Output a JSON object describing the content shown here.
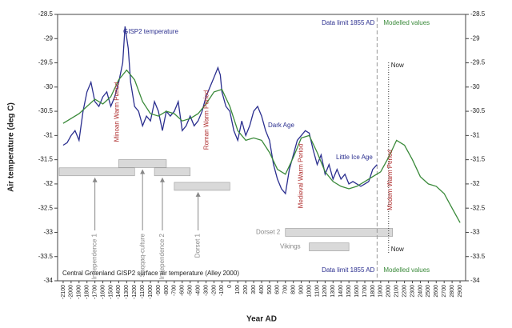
{
  "chart_data": {
    "type": "line",
    "y_label": "Air temperature (deg C)",
    "x_label": "Year AD",
    "caption": "Central Greenland GISP2 surface air temperature (Alley 2000)",
    "xlim": [
      -2170,
      2970
    ],
    "ylim": [
      -34.0,
      -28.5
    ],
    "yticks": [
      -34.0,
      -33.5,
      -33.0,
      -32.5,
      -32.0,
      -31.5,
      -31.0,
      -30.5,
      -30.0,
      -29.5,
      -29.0,
      -28.5
    ],
    "xticks": [
      -2100,
      -2000,
      -1900,
      -1800,
      -1700,
      -1600,
      -1500,
      -1400,
      -1300,
      -1200,
      -1100,
      -1000,
      -900,
      -800,
      -700,
      -600,
      -500,
      -400,
      -300,
      -200,
      -100,
      0,
      100,
      200,
      300,
      400,
      500,
      600,
      700,
      800,
      900,
      1000,
      1100,
      1200,
      1300,
      1400,
      1500,
      1600,
      1700,
      1800,
      1900,
      2000,
      2100,
      2200,
      2300,
      2400,
      2500,
      2600,
      2700,
      2800,
      2900
    ],
    "series": [
      {
        "name": "GISP2 temperature",
        "color": "#2b2f8f",
        "x": [
          -2100,
          -2050,
          -2000,
          -1950,
          -1900,
          -1850,
          -1800,
          -1750,
          -1700,
          -1650,
          -1600,
          -1550,
          -1500,
          -1450,
          -1400,
          -1350,
          -1320,
          -1280,
          -1250,
          -1200,
          -1150,
          -1100,
          -1050,
          -1000,
          -950,
          -900,
          -850,
          -800,
          -750,
          -700,
          -650,
          -600,
          -550,
          -500,
          -450,
          -400,
          -350,
          -300,
          -250,
          -200,
          -150,
          -120,
          -100,
          -50,
          0,
          50,
          100,
          150,
          200,
          250,
          300,
          350,
          400,
          450,
          500,
          550,
          600,
          650,
          700,
          750,
          800,
          850,
          900,
          950,
          1000,
          1050,
          1100,
          1150,
          1200,
          1250,
          1300,
          1350,
          1400,
          1450,
          1500,
          1550,
          1600,
          1650,
          1700,
          1750,
          1800,
          1855
        ],
        "values": [
          -31.2,
          -31.15,
          -31.0,
          -30.9,
          -31.1,
          -30.5,
          -30.1,
          -29.9,
          -30.3,
          -30.4,
          -30.2,
          -30.1,
          -30.4,
          -30.2,
          -29.9,
          -29.5,
          -28.75,
          -29.2,
          -29.9,
          -30.4,
          -30.5,
          -30.8,
          -30.6,
          -30.7,
          -30.3,
          -30.5,
          -30.9,
          -30.5,
          -30.6,
          -30.5,
          -30.3,
          -30.9,
          -30.8,
          -30.6,
          -30.8,
          -30.7,
          -30.5,
          -30.2,
          -30.0,
          -29.8,
          -29.6,
          -29.75,
          -30.1,
          -30.4,
          -30.5,
          -30.9,
          -31.1,
          -30.7,
          -31.0,
          -30.8,
          -30.5,
          -30.4,
          -30.6,
          -30.9,
          -31.1,
          -31.6,
          -31.9,
          -32.1,
          -32.2,
          -31.7,
          -31.4,
          -31.1,
          -31.0,
          -30.9,
          -30.95,
          -31.3,
          -31.6,
          -31.4,
          -31.8,
          -31.6,
          -31.9,
          -31.7,
          -31.9,
          -31.8,
          -32.0,
          -31.95,
          -32.0,
          -32.05,
          -32.0,
          -31.95,
          -31.7,
          -31.6
        ]
      },
      {
        "name": "Modelled values",
        "color": "#3a8a3a",
        "x": [
          -2100,
          -1900,
          -1700,
          -1600,
          -1500,
          -1400,
          -1300,
          -1200,
          -1100,
          -1000,
          -900,
          -800,
          -700,
          -600,
          -500,
          -400,
          -300,
          -200,
          -100,
          0,
          100,
          200,
          300,
          400,
          500,
          600,
          700,
          800,
          900,
          1000,
          1100,
          1200,
          1300,
          1400,
          1500,
          1600,
          1700,
          1800,
          1900,
          2000,
          2100,
          2200,
          2300,
          2400,
          2500,
          2600,
          2700,
          2800,
          2900
        ],
        "values": [
          -30.75,
          -30.55,
          -30.25,
          -30.35,
          -30.2,
          -29.85,
          -29.65,
          -29.85,
          -30.3,
          -30.55,
          -30.6,
          -30.5,
          -30.55,
          -30.7,
          -30.65,
          -30.55,
          -30.35,
          -30.1,
          -30.05,
          -30.4,
          -30.9,
          -31.1,
          -31.05,
          -31.1,
          -31.35,
          -31.7,
          -31.8,
          -31.45,
          -31.05,
          -31.0,
          -31.35,
          -31.75,
          -31.95,
          -32.05,
          -32.1,
          -32.05,
          -31.95,
          -31.85,
          -31.75,
          -31.45,
          -31.1,
          -31.2,
          -31.5,
          -31.85,
          -32.0,
          -32.05,
          -32.2,
          -32.5,
          -32.8
        ]
      }
    ],
    "data_limit": {
      "year": 1855,
      "label": "Data limit 1855 AD"
    },
    "now": {
      "year": 2000,
      "label": "Now"
    },
    "modelled_label": "Modelled values",
    "warm_periods": [
      "Minoan Warm Period",
      "Roman Warm Period",
      "Medieval Warm Period",
      "Modern Warm Period"
    ],
    "ages": [
      "Dark Age",
      "Little Ice Age"
    ],
    "periods": [
      {
        "name": "Independence 1",
        "start": -2150,
        "end": -1200,
        "level": -31.75
      },
      {
        "name": "Saqqaq-culture",
        "start": -1400,
        "end": -800,
        "level": -31.58
      },
      {
        "name": "Independence 2",
        "start": -950,
        "end": -500,
        "level": -31.75
      },
      {
        "name": "Dorset 1",
        "start": -700,
        "end": 0,
        "level": -32.05
      },
      {
        "name": "Dorset 2",
        "start": 700,
        "end": 2050,
        "level": -33.0
      },
      {
        "name": "Vikings",
        "start": 1000,
        "end": 1500,
        "level": -33.3
      }
    ]
  }
}
